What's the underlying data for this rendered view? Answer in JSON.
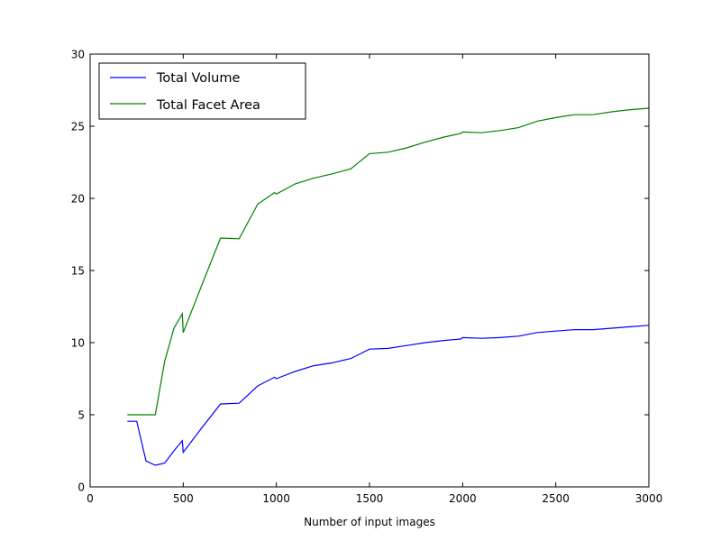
{
  "chart_data": {
    "type": "line",
    "title": "",
    "xlabel": "Number of input images",
    "ylabel": "",
    "xlim": [
      0,
      3000
    ],
    "ylim": [
      0,
      30
    ],
    "xticks": [
      0,
      500,
      1000,
      1500,
      2000,
      2500,
      3000
    ],
    "yticks": [
      0,
      5,
      10,
      15,
      20,
      25,
      30
    ],
    "grid": false,
    "legend_position": "top-left",
    "series": [
      {
        "name": "Total Volume",
        "color": "#0000ff",
        "points": [
          [
            200,
            4.55
          ],
          [
            250,
            4.55
          ],
          [
            300,
            1.8
          ],
          [
            350,
            1.5
          ],
          [
            400,
            1.65
          ],
          [
            450,
            2.5
          ],
          [
            495,
            3.2
          ],
          [
            500,
            2.4
          ],
          [
            600,
            4.1
          ],
          [
            700,
            5.75
          ],
          [
            800,
            5.8
          ],
          [
            900,
            7.0
          ],
          [
            990,
            7.6
          ],
          [
            1000,
            7.5
          ],
          [
            1100,
            8.0
          ],
          [
            1200,
            8.4
          ],
          [
            1300,
            8.6
          ],
          [
            1400,
            8.9
          ],
          [
            1500,
            9.55
          ],
          [
            1600,
            9.6
          ],
          [
            1700,
            9.8
          ],
          [
            1800,
            10.0
          ],
          [
            1900,
            10.15
          ],
          [
            1990,
            10.25
          ],
          [
            2000,
            10.35
          ],
          [
            2100,
            10.3
          ],
          [
            2200,
            10.35
          ],
          [
            2300,
            10.45
          ],
          [
            2400,
            10.7
          ],
          [
            2500,
            10.8
          ],
          [
            2600,
            10.9
          ],
          [
            2700,
            10.9
          ],
          [
            2800,
            11.0
          ],
          [
            2900,
            11.1
          ],
          [
            3000,
            11.2
          ]
        ]
      },
      {
        "name": "Total Facet Area",
        "color": "#008000",
        "points": [
          [
            200,
            5.0
          ],
          [
            250,
            5.0
          ],
          [
            300,
            5.0
          ],
          [
            350,
            5.0
          ],
          [
            400,
            8.7
          ],
          [
            450,
            11.0
          ],
          [
            495,
            12.0
          ],
          [
            500,
            10.7
          ],
          [
            600,
            14.0
          ],
          [
            700,
            17.25
          ],
          [
            800,
            17.2
          ],
          [
            900,
            19.6
          ],
          [
            990,
            20.4
          ],
          [
            1000,
            20.3
          ],
          [
            1100,
            21.0
          ],
          [
            1200,
            21.4
          ],
          [
            1300,
            21.7
          ],
          [
            1400,
            22.05
          ],
          [
            1500,
            23.1
          ],
          [
            1600,
            23.2
          ],
          [
            1700,
            23.5
          ],
          [
            1800,
            23.9
          ],
          [
            1900,
            24.25
          ],
          [
            1990,
            24.5
          ],
          [
            2000,
            24.6
          ],
          [
            2100,
            24.55
          ],
          [
            2200,
            24.7
          ],
          [
            2300,
            24.9
          ],
          [
            2400,
            25.35
          ],
          [
            2500,
            25.6
          ],
          [
            2600,
            25.8
          ],
          [
            2700,
            25.8
          ],
          [
            2800,
            26.0
          ],
          [
            2900,
            26.15
          ],
          [
            3000,
            26.25
          ]
        ]
      }
    ]
  }
}
